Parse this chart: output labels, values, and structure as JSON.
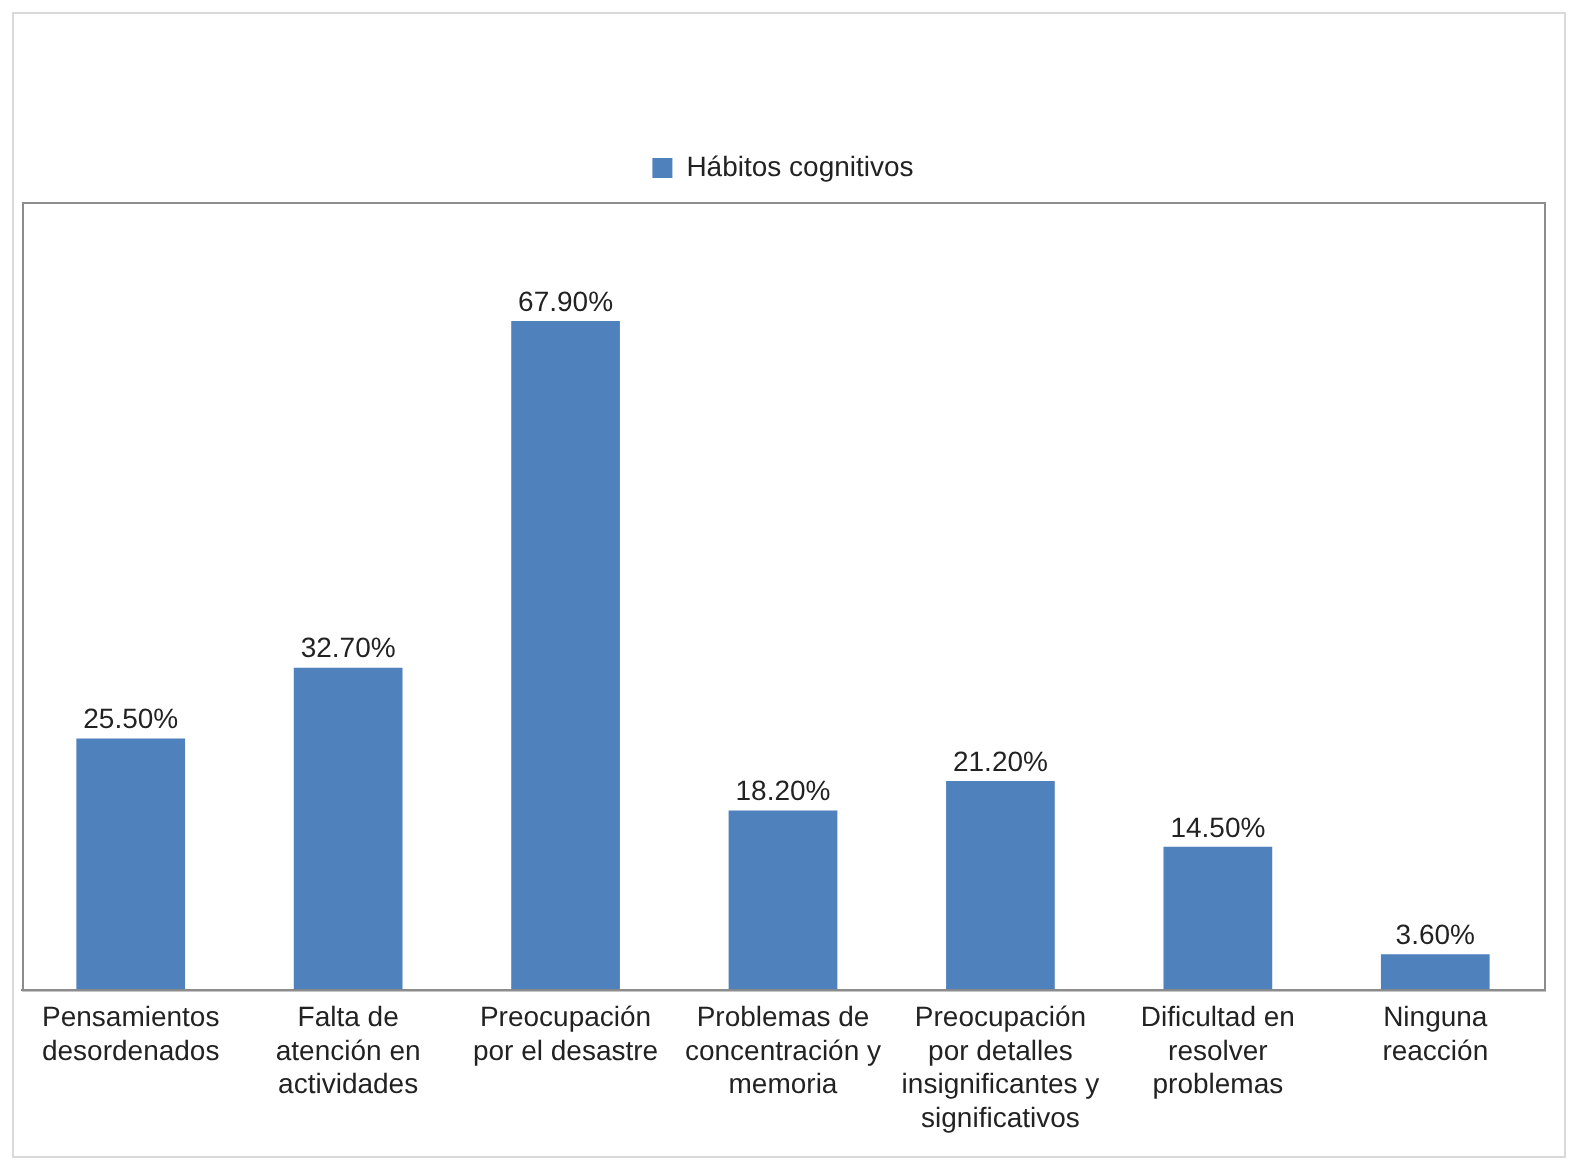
{
  "chart_data": {
    "type": "bar",
    "categories": [
      "Pensamientos desordenados",
      "Falta de atención en actividades",
      "Preocupación por el desastre",
      "Problemas de concentración y memoria",
      "Preocupación por detalles insignificantes y significativos",
      "Dificultad en resolver problemas",
      "Ninguna reacción"
    ],
    "series": [
      {
        "name": "Hábitos cognitivos",
        "color": "#4f81bd",
        "values": [
          25.5,
          32.7,
          67.9,
          18.2,
          21.2,
          14.5,
          3.6
        ],
        "value_labels": [
          "25.50%",
          "32.70%",
          "67.90%",
          "18.20%",
          "21.20%",
          "14.50%",
          "3.60%"
        ]
      }
    ],
    "legend": "top",
    "grid": false,
    "tick_labels": "x"
  }
}
